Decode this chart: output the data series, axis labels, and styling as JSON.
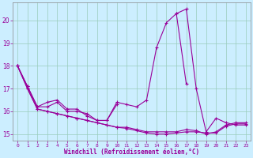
{
  "xlabel": "Windchill (Refroidissement éolien,°C)",
  "background_color": "#cceeff",
  "line_color": "#990099",
  "grid_color": "#aaddcc",
  "xlim": [
    -0.5,
    23.5
  ],
  "ylim": [
    14.7,
    20.8
  ],
  "yticks": [
    15,
    16,
    17,
    18,
    19,
    20
  ],
  "xticks": [
    0,
    1,
    2,
    3,
    4,
    5,
    6,
    7,
    8,
    9,
    10,
    11,
    12,
    13,
    14,
    15,
    16,
    17,
    18,
    19,
    20,
    21,
    22,
    23
  ],
  "hours": [
    0,
    1,
    2,
    3,
    4,
    5,
    6,
    7,
    8,
    9,
    10,
    11,
    12,
    13,
    14,
    15,
    16,
    17,
    18,
    19,
    20,
    21,
    22,
    23
  ],
  "line1": [
    18.0,
    17.1,
    16.2,
    16.2,
    16.4,
    16.0,
    16.0,
    15.9,
    15.6,
    15.6,
    16.4,
    16.3,
    16.2,
    16.5,
    18.8,
    19.9,
    20.3,
    17.2,
    null,
    null,
    null,
    null,
    null,
    null
  ],
  "line2": [
    null,
    null,
    null,
    null,
    null,
    null,
    null,
    null,
    null,
    null,
    null,
    null,
    null,
    null,
    null,
    null,
    20.3,
    20.5,
    17.0,
    15.1,
    15.7,
    15.5,
    15.4,
    15.4
  ],
  "line3": [
    18.0,
    17.1,
    16.2,
    16.4,
    16.5,
    16.1,
    16.1,
    15.8,
    15.6,
    15.6,
    16.3,
    null,
    null,
    null,
    null,
    null,
    null,
    null,
    null,
    null,
    null,
    null,
    null,
    null
  ],
  "line4": [
    18.0,
    17.0,
    16.1,
    16.0,
    15.9,
    15.8,
    15.7,
    15.6,
    15.5,
    15.4,
    15.3,
    15.25,
    15.15,
    15.05,
    15.0,
    15.0,
    15.05,
    15.1,
    15.1,
    15.05,
    15.05,
    15.35,
    15.45,
    15.45
  ],
  "line5": [
    18.0,
    17.0,
    16.1,
    16.0,
    15.9,
    15.8,
    15.7,
    15.6,
    15.5,
    15.4,
    15.3,
    15.3,
    15.2,
    15.1,
    15.1,
    15.1,
    15.1,
    15.2,
    15.15,
    15.0,
    15.1,
    15.4,
    15.5,
    15.5
  ]
}
